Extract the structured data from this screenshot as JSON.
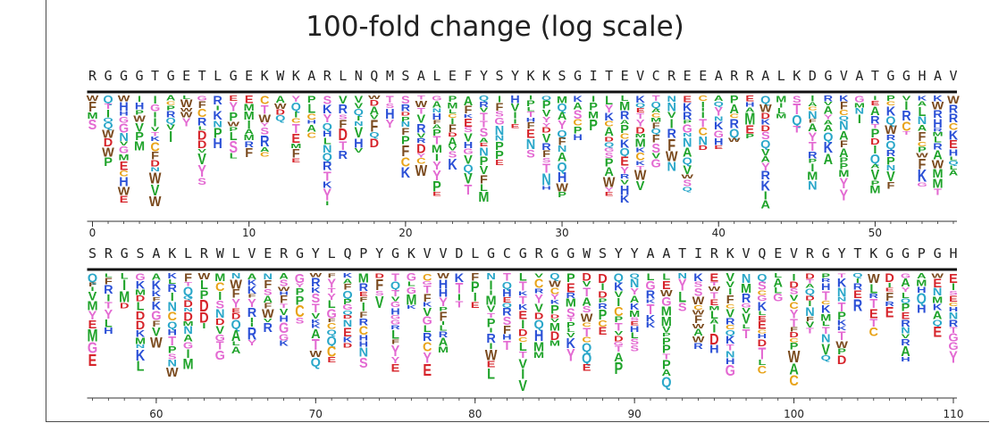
{
  "chart_data": {
    "type": "sequence-logo",
    "title": "100-fold change (log scale)",
    "panels": [
      {
        "sequence": "RGGGTGETLGEKWKARLNQMSALEFYSYKKSGITEVCREEARRALKDGVATGGHAV",
        "x_range": [
          0,
          55
        ],
        "ticks": [
          0,
          10,
          20,
          30,
          40,
          50
        ],
        "tick_labels": [
          "0",
          "10",
          "20",
          "30",
          "40",
          "50"
        ]
      },
      {
        "sequence": "SRGSAKLRWLVERGYLQPYGKVVDLGCGRGGWSYYAATIRKVQEVRGYTKGGPGH",
        "x_range": [
          56,
          110
        ],
        "ticks": [
          60,
          70,
          80,
          90,
          100,
          110
        ],
        "tick_labels": [
          "60",
          "70",
          "80",
          "90",
          "100",
          "110"
        ]
      }
    ],
    "residue_colors": {
      "hydrophobic": "#1fa32a",
      "polar": "#e36ad2",
      "basic": "#2a4fd6",
      "acidic": "#d6232a",
      "aromatic": "#7a4a1e",
      "amide": "#2aa7c9",
      "sulfur": "#e8a318",
      "other": "#555555"
    }
  }
}
